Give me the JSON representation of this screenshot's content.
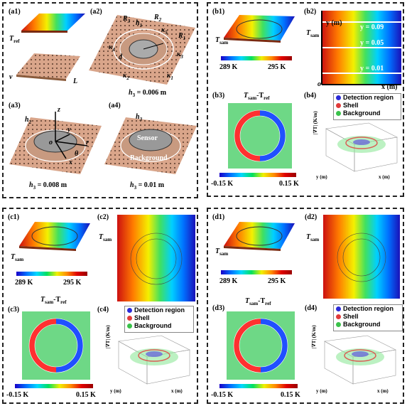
{
  "panel_a": {
    "a1": "(a1)",
    "a2": "(a2)",
    "a3": "(a3)",
    "a4": "(a4)",
    "tref": "T",
    "tref_sub": "ref",
    "v": "v",
    "L": "L",
    "R1": "R",
    "R1s": "1",
    "R2": "R",
    "R2s": "2",
    "R3": "R",
    "R3s": "3",
    "h1": "h",
    "h1s": "1",
    "k1": "κ",
    "k1s": "1",
    "k2": "κ",
    "k2s": "2",
    "k3": "κ",
    "k3s": "3",
    "k4": "κ",
    "k4s": "4",
    "k5": "κ",
    "k5s": "5",
    "d": "d",
    "z": "z",
    "y": "y",
    "r": "r",
    "x": "x",
    "o": "o",
    "theta": "θ",
    "h2": "h",
    "h2s": "2",
    "h3": "h",
    "h3s": "3",
    "sensor": "Sensor",
    "background": "Background",
    "h3_a2": "h",
    "h3_a2s": "3",
    "h3_a2v": " = 0.006 m",
    "h3_a3": "h",
    "h3_a3s": "3",
    "h3_a3v": " = 0.008 m",
    "h3_a4": "h",
    "h3_a4s": "3",
    "h3_a4v": " = 0.01 m"
  },
  "panel_b": {
    "b1": "(b1)",
    "b2": "(b2)",
    "b3": "(b3)",
    "b4": "(b4)",
    "tsam": "T",
    "tsam_sub": "sam",
    "cbar_min": "289 K",
    "cbar_max": "295 K",
    "y_axis": "y (m)",
    "x_axis": "x (m)",
    "origin": "o",
    "line1": "y = 0.09",
    "line2": "y = 0.05",
    "line3": "y = 0.01",
    "diff_title": "T",
    "diff_sub": "sam",
    "diff_minus": "-T",
    "diff_sub2": "ref",
    "diff_min": "-0.15 K",
    "diff_max": "0.15 K",
    "legend": [
      "Detection region",
      "Shell",
      "Background"
    ],
    "plot_ylabel": "|∇T| (K/m)",
    "plot_x": "x (m)",
    "plot_y": "y (m)",
    "plot_ticks": [
      "40",
      "20",
      "0",
      "0.1",
      "0.05",
      "0",
      "0",
      "0.05",
      "0.1"
    ]
  },
  "panel_c": {
    "c1": "(c1)",
    "c2": "(c2)",
    "c3": "(c3)",
    "c4": "(c4)",
    "tsam": "T",
    "tsam_sub": "sam",
    "cbar_min": "289 K",
    "cbar_max": "295 K",
    "diff_title": "T",
    "diff_sub": "sam",
    "diff_minus": "-T",
    "diff_sub2": "ref",
    "diff_min": "-0.15 K",
    "diff_max": "0.15 K",
    "legend": [
      "Detection region",
      "Shell",
      "Background"
    ],
    "plot_ylabel": "|∇T| (K/m)",
    "plot_x": "x (m)",
    "plot_y": "y (m)"
  },
  "panel_d": {
    "d1": "(d1)",
    "d2": "(d2)",
    "d3": "(d3)",
    "d4": "(d4)",
    "tsam": "T",
    "tsam_sub": "sam",
    "cbar_min": "289 K",
    "cbar_max": "295 K",
    "diff_title": "T",
    "diff_sub": "sam",
    "diff_minus": "-T",
    "diff_sub2": "ref",
    "diff_min": "-0.15 K",
    "diff_max": "0.15 K",
    "legend": [
      "Detection region",
      "Shell",
      "Background"
    ],
    "plot_ylabel": "|∇T| (K/m)",
    "plot_x": "x (m)",
    "plot_y": "y (m)"
  },
  "colors": {
    "legend_detection": "#2a2ad8",
    "legend_shell": "#e03a3a",
    "legend_background": "#3ac24a",
    "copper": "#d9a58a"
  }
}
